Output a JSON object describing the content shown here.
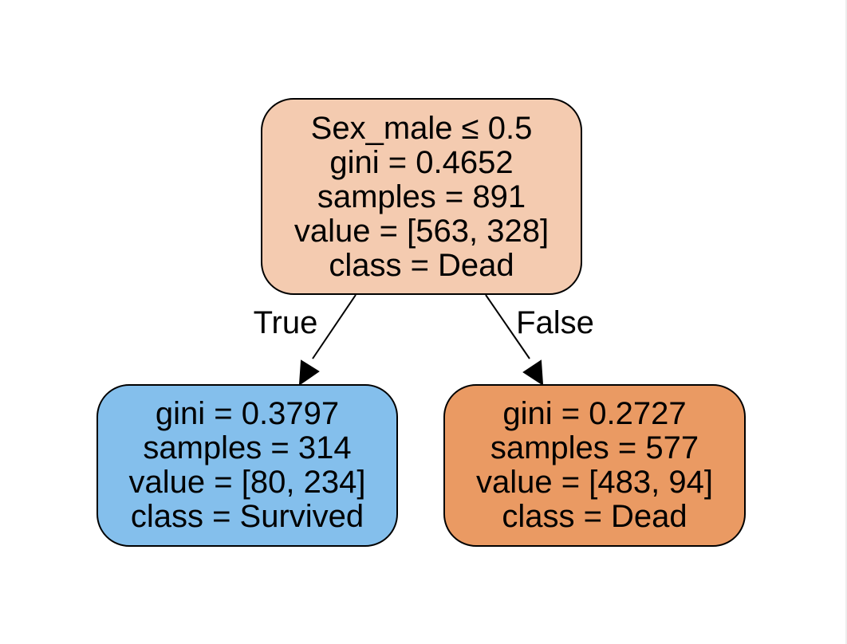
{
  "tree": {
    "root": {
      "lines": [
        "Sex_male ≤ 0.5",
        "gini = 0.4652",
        "samples = 891",
        "value = [563, 328]",
        "class = Dead"
      ],
      "color": "#f4cbb0"
    },
    "left": {
      "lines": [
        "gini = 0.3797",
        "samples = 314",
        "value = [80, 234]",
        "class = Survived"
      ],
      "color": "#84bfec"
    },
    "right": {
      "lines": [
        "gini = 0.2727",
        "samples = 577",
        "value = [483, 94]",
        "class = Dead"
      ],
      "color": "#ea9a63"
    },
    "edges": {
      "true_label": "True",
      "false_label": "False"
    }
  }
}
